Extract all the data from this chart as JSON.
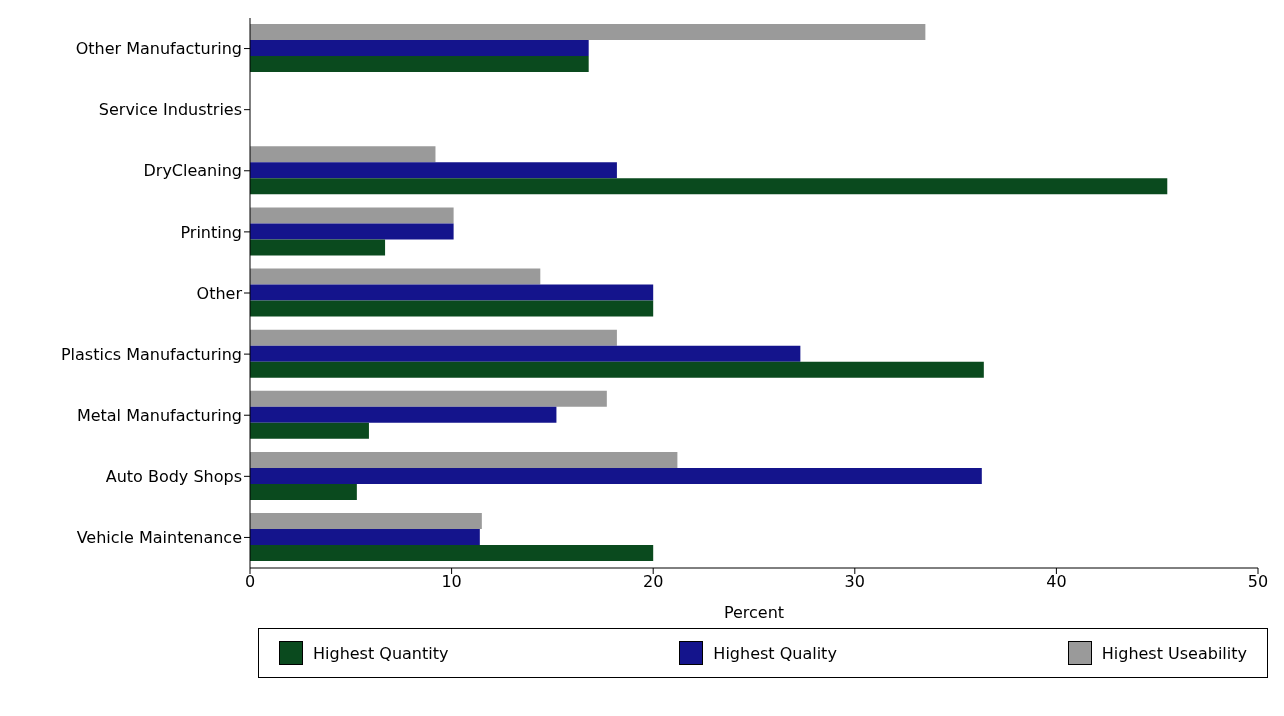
{
  "chart_data": {
    "type": "bar",
    "orientation": "horizontal",
    "xlabel": "Percent",
    "categories": [
      "Other Manufacturing",
      "Service Industries",
      "DryCleaning",
      "Printing",
      "Other",
      "Plastics Manufacturing",
      "Metal Manufacturing",
      "Auto Body Shops",
      "Vehicle Maintenance"
    ],
    "series": [
      {
        "name": "Highest Quantity",
        "color": "#0a4a1e",
        "values": [
          16.8,
          null,
          45.5,
          6.7,
          20,
          36.4,
          5.9,
          5.3,
          20
        ]
      },
      {
        "name": "Highest Quality",
        "color": "#14148c",
        "values": [
          16.8,
          null,
          18.2,
          10.1,
          20,
          27.3,
          15.2,
          36.3,
          11.4
        ]
      },
      {
        "name": "Highest Useability",
        "color": "#9a9a9a",
        "values": [
          33.5,
          null,
          9.2,
          10.1,
          14.4,
          18.2,
          17.7,
          21.2,
          11.5
        ]
      }
    ],
    "xlim": [
      0,
      50
    ],
    "xticks": [
      0,
      10,
      20,
      30,
      40,
      50
    ],
    "legend": "bottom"
  }
}
